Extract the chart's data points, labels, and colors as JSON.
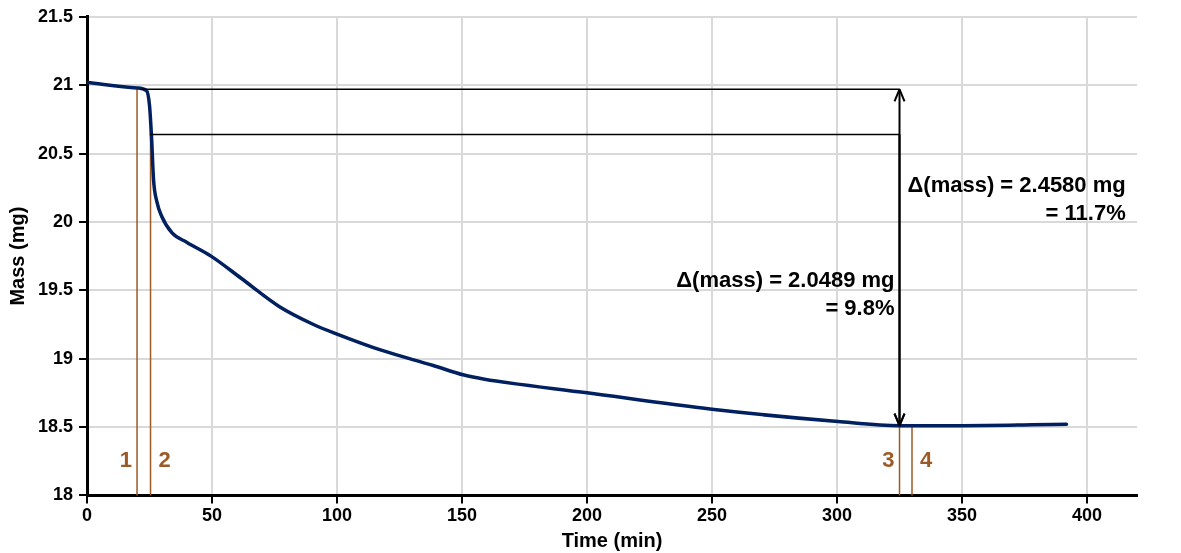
{
  "chart_data": {
    "type": "line",
    "xlabel": "Time (min)",
    "ylabel": "Mass (mg)",
    "xlim": [
      0,
      420
    ],
    "xticks": [
      0,
      50,
      100,
      150,
      200,
      250,
      300,
      350,
      400
    ],
    "ylim": [
      18,
      21.5
    ],
    "yticks": [
      18,
      18.5,
      19,
      19.5,
      20,
      20.5,
      21,
      21.5
    ],
    "grid": true,
    "legend": false,
    "marker": "none",
    "line_style": "solid",
    "series": [
      {
        "color": "#002060",
        "x": [
          0,
          20,
          23.8,
          25,
          25.8,
          26.6,
          27.9,
          29.9,
          34,
          40,
          49.6,
          61.5,
          77,
          90.6,
          100,
          118,
          138.5,
          150.8,
          159,
          200,
          250,
          300.4,
          325,
          330,
          350,
          391.8
        ],
        "values": [
          21.02,
          20.98,
          20.96,
          20.85,
          20.62,
          20.31,
          20.15,
          20.04,
          19.92,
          19.85,
          19.75,
          19.59,
          19.38,
          19.25,
          19.18,
          19.06,
          18.95,
          18.88,
          18.85,
          18.75,
          18.63,
          18.54,
          18.51,
          18.51,
          18.51,
          18.52
        ]
      },
      {
        "color": "#000000",
        "x": [
          21.7,
          325
        ],
        "values": [
          20.97,
          20.97
        ]
      },
      {
        "color": "#000000",
        "x": [
          25.4,
          325
        ],
        "values": [
          20.64,
          20.64
        ]
      }
    ],
    "ref_lines": [
      {
        "axis": "x",
        "value": 20,
        "color": "#9c5a26"
      },
      {
        "axis": "x",
        "value": 25.4,
        "color": "#9c5a26"
      },
      {
        "axis": "x",
        "value": 325,
        "color": "#9c5a26"
      },
      {
        "axis": "x",
        "value": 330,
        "color": "#9c5a26"
      }
    ],
    "annotations": [
      {
        "text": "1",
        "x": 20,
        "y": 18.25
      },
      {
        "text": "2",
        "x": 25.4,
        "y": 18.25
      },
      {
        "text": "3",
        "x": 325,
        "y": 18.25
      },
      {
        "text": "4",
        "x": 330,
        "y": 18.25
      },
      "Δ(mass) = 2.0489 mg\n= 9.8%",
      "Δ(mass) = 2.4580 mg\n= 11.7%"
    ]
  }
}
